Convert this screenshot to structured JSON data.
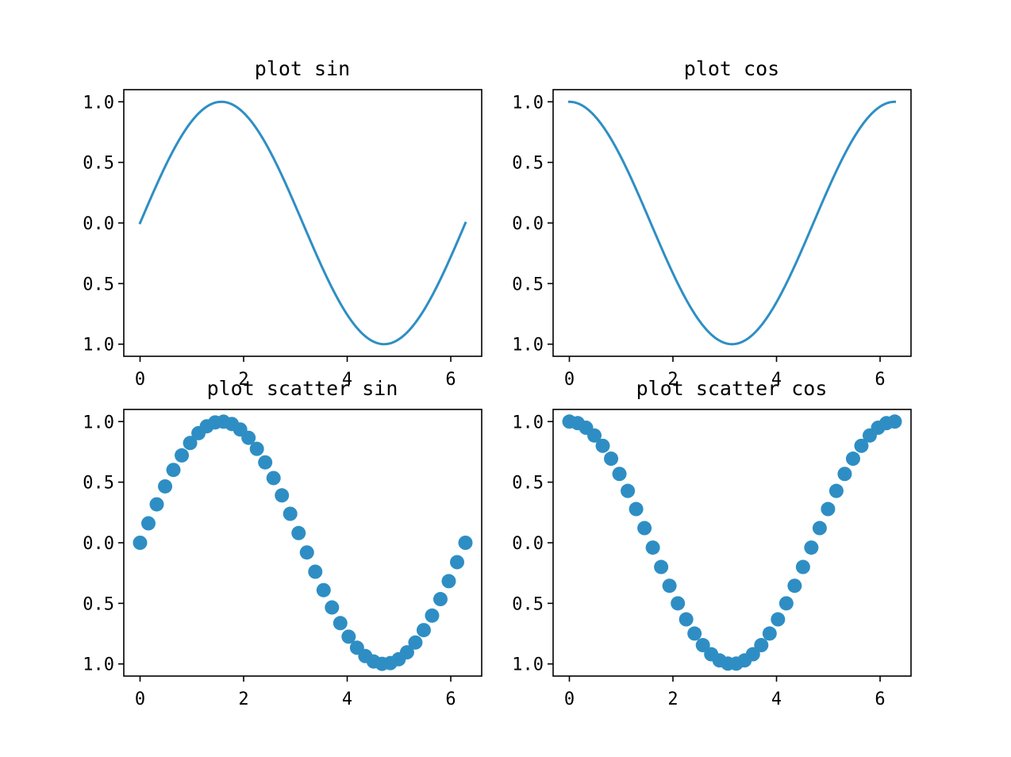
{
  "style": {
    "line_color": "#2e8ec4",
    "marker_color": "#2e8ec4",
    "axis_color": "#000000",
    "background": "#ffffff"
  },
  "chart_data": [
    {
      "type": "line",
      "title": "plot sin",
      "function": "sin",
      "x_range": [
        0,
        6.2832
      ],
      "num_points": 200,
      "xlim": [
        -0.314,
        6.597
      ],
      "ylim": [
        -1.1,
        1.1
      ],
      "xticks": [
        0,
        2,
        4,
        6
      ],
      "xtick_labels": [
        "0",
        "2",
        "4",
        "6"
      ],
      "yticks": [
        1.0,
        0.5,
        0.0,
        -0.5,
        -1.0
      ],
      "ytick_labels": [
        "1.0",
        "0.5",
        "0.0",
        "0.5",
        "1.0"
      ],
      "xlabel": "",
      "ylabel": "",
      "grid": false
    },
    {
      "type": "line",
      "title": "plot cos",
      "function": "cos",
      "x_range": [
        0,
        6.2832
      ],
      "num_points": 200,
      "xlim": [
        -0.314,
        6.597
      ],
      "ylim": [
        -1.1,
        1.1
      ],
      "xticks": [
        0,
        2,
        4,
        6
      ],
      "xtick_labels": [
        "0",
        "2",
        "4",
        "6"
      ],
      "yticks": [
        1.0,
        0.5,
        0.0,
        -0.5,
        -1.0
      ],
      "ytick_labels": [
        "1.0",
        "0.5",
        "0.0",
        "0.5",
        "1.0"
      ],
      "xlabel": "",
      "ylabel": "",
      "grid": false
    },
    {
      "type": "scatter",
      "title": "plot scatter sin",
      "x": [
        0,
        0.1611,
        0.3222,
        0.4833,
        0.6444,
        0.8055,
        0.9666,
        1.1278,
        1.2889,
        1.45,
        1.6111,
        1.7722,
        1.9333,
        2.0944,
        2.2555,
        2.4166,
        2.5777,
        2.7388,
        2.8999,
        3.061,
        3.2221,
        3.3833,
        3.5444,
        3.7055,
        3.8666,
        4.0277,
        4.1888,
        4.3499,
        4.511,
        4.6721,
        4.8332,
        4.9943,
        5.1554,
        5.3166,
        5.4777,
        5.6388,
        5.7999,
        5.961,
        6.1221,
        6.2832
      ],
      "y": [
        0.0,
        0.16,
        0.317,
        0.465,
        0.601,
        0.721,
        0.823,
        0.904,
        0.961,
        0.993,
        0.999,
        0.98,
        0.935,
        0.866,
        0.775,
        0.663,
        0.534,
        0.391,
        0.239,
        0.08,
        -0.08,
        -0.239,
        -0.391,
        -0.534,
        -0.663,
        -0.775,
        -0.866,
        -0.935,
        -0.98,
        -0.999,
        -0.993,
        -0.961,
        -0.904,
        -0.823,
        -0.721,
        -0.601,
        -0.465,
        -0.317,
        -0.16,
        0.0
      ],
      "xlim": [
        -0.314,
        6.597
      ],
      "ylim": [
        -1.1,
        1.1
      ],
      "xticks": [
        0,
        2,
        4,
        6
      ],
      "xtick_labels": [
        "0",
        "2",
        "4",
        "6"
      ],
      "yticks": [
        1.0,
        0.5,
        0.0,
        -0.5,
        -1.0
      ],
      "ytick_labels": [
        "1.0",
        "0.5",
        "0.0",
        "0.5",
        "1.0"
      ],
      "xlabel": "",
      "ylabel": "",
      "grid": false
    },
    {
      "type": "scatter",
      "title": "plot scatter cos",
      "x": [
        0,
        0.1611,
        0.3222,
        0.4833,
        0.6444,
        0.8055,
        0.9666,
        1.1278,
        1.2889,
        1.45,
        1.6111,
        1.7722,
        1.9333,
        2.0944,
        2.2555,
        2.4166,
        2.5777,
        2.7388,
        2.8999,
        3.061,
        3.2221,
        3.3833,
        3.5444,
        3.7055,
        3.8666,
        4.0277,
        4.1888,
        4.3499,
        4.511,
        4.6721,
        4.8332,
        4.9943,
        5.1554,
        5.3166,
        5.4777,
        5.6388,
        5.7999,
        5.961,
        6.1221,
        6.2832
      ],
      "y": [
        1.0,
        0.987,
        0.949,
        0.885,
        0.8,
        0.694,
        0.568,
        0.428,
        0.278,
        0.121,
        -0.04,
        -0.2,
        -0.355,
        -0.5,
        -0.632,
        -0.749,
        -0.845,
        -0.92,
        -0.971,
        -0.997,
        -0.997,
        -0.971,
        -0.92,
        -0.845,
        -0.749,
        -0.632,
        -0.5,
        -0.355,
        -0.2,
        -0.04,
        0.121,
        0.278,
        0.428,
        0.568,
        0.694,
        0.8,
        0.885,
        0.949,
        0.987,
        1.0
      ],
      "xlim": [
        -0.314,
        6.597
      ],
      "ylim": [
        -1.1,
        1.1
      ],
      "xticks": [
        0,
        2,
        4,
        6
      ],
      "xtick_labels": [
        "0",
        "2",
        "4",
        "6"
      ],
      "yticks": [
        1.0,
        0.5,
        0.0,
        -0.5,
        -1.0
      ],
      "ytick_labels": [
        "1.0",
        "0.5",
        "0.0",
        "0.5",
        "1.0"
      ],
      "xlabel": "",
      "ylabel": "",
      "grid": false
    }
  ]
}
